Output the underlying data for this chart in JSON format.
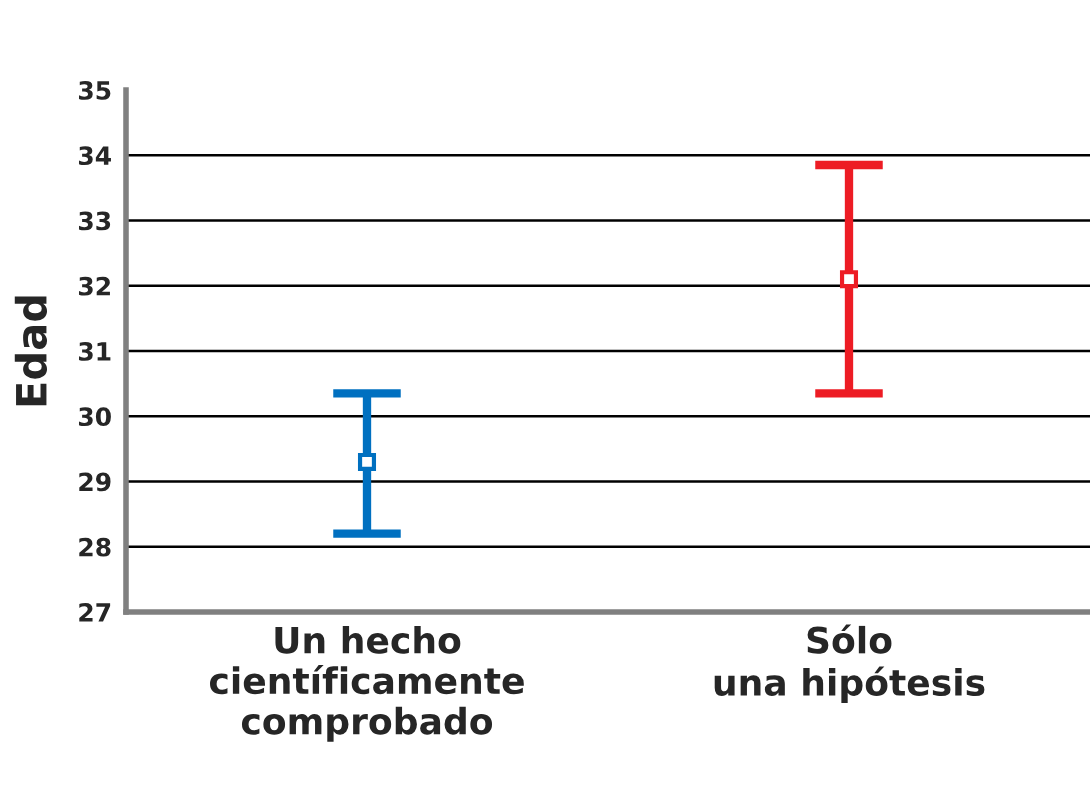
{
  "chart_data": {
    "type": "scatter",
    "ylabel": "Edad",
    "categories": [
      "Un hecho\ncientíficamente\ncomprobado",
      "Sólo\nuna hipótesis"
    ],
    "values": [
      29.3,
      32.1
    ],
    "errors": [
      [
        28.2,
        30.35
      ],
      [
        30.35,
        33.85
      ]
    ],
    "colors": [
      "#0070c0",
      "#ed1c24"
    ],
    "marker": "square",
    "ylim": [
      27,
      35
    ],
    "yticks": [
      27,
      28,
      29,
      30,
      31,
      32,
      33,
      34,
      35
    ],
    "grid": "y"
  }
}
